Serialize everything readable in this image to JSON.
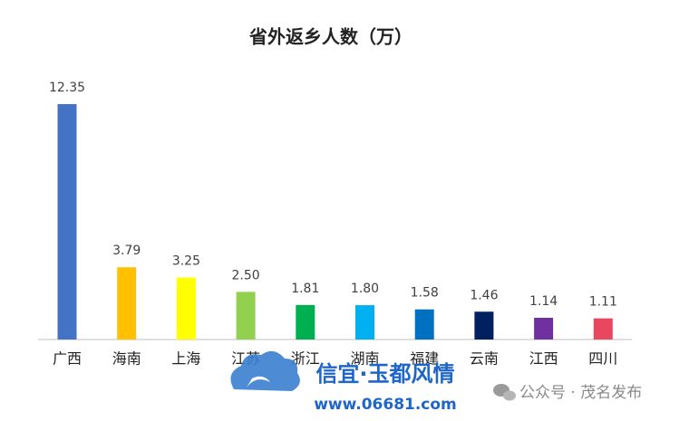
{
  "chart_data": {
    "type": "bar",
    "title": "省外返乡人数（万）",
    "categories": [
      "广西",
      "海南",
      "上海",
      "江苏",
      "浙江",
      "湖南",
      "福建",
      "云南",
      "江西",
      "四川"
    ],
    "values": [
      12.35,
      3.79,
      3.25,
      2.5,
      1.81,
      1.8,
      1.58,
      1.46,
      1.14,
      1.11
    ],
    "value_labels": [
      "12.35",
      "3.79",
      "3.25",
      "2.50",
      "1.81",
      "1.80",
      "1.58",
      "1.46",
      "1.14",
      "1.11"
    ],
    "colors": [
      "#4472c4",
      "#ffc000",
      "#ffff00",
      "#92d050",
      "#00b050",
      "#00b0f0",
      "#0070c0",
      "#002060",
      "#7030a0",
      "#e8475f"
    ]
  },
  "watermarks": {
    "site_name": "信宜·玉都风情",
    "site_url": "www.06681.com",
    "account": "公众号 · 茂名发布"
  }
}
